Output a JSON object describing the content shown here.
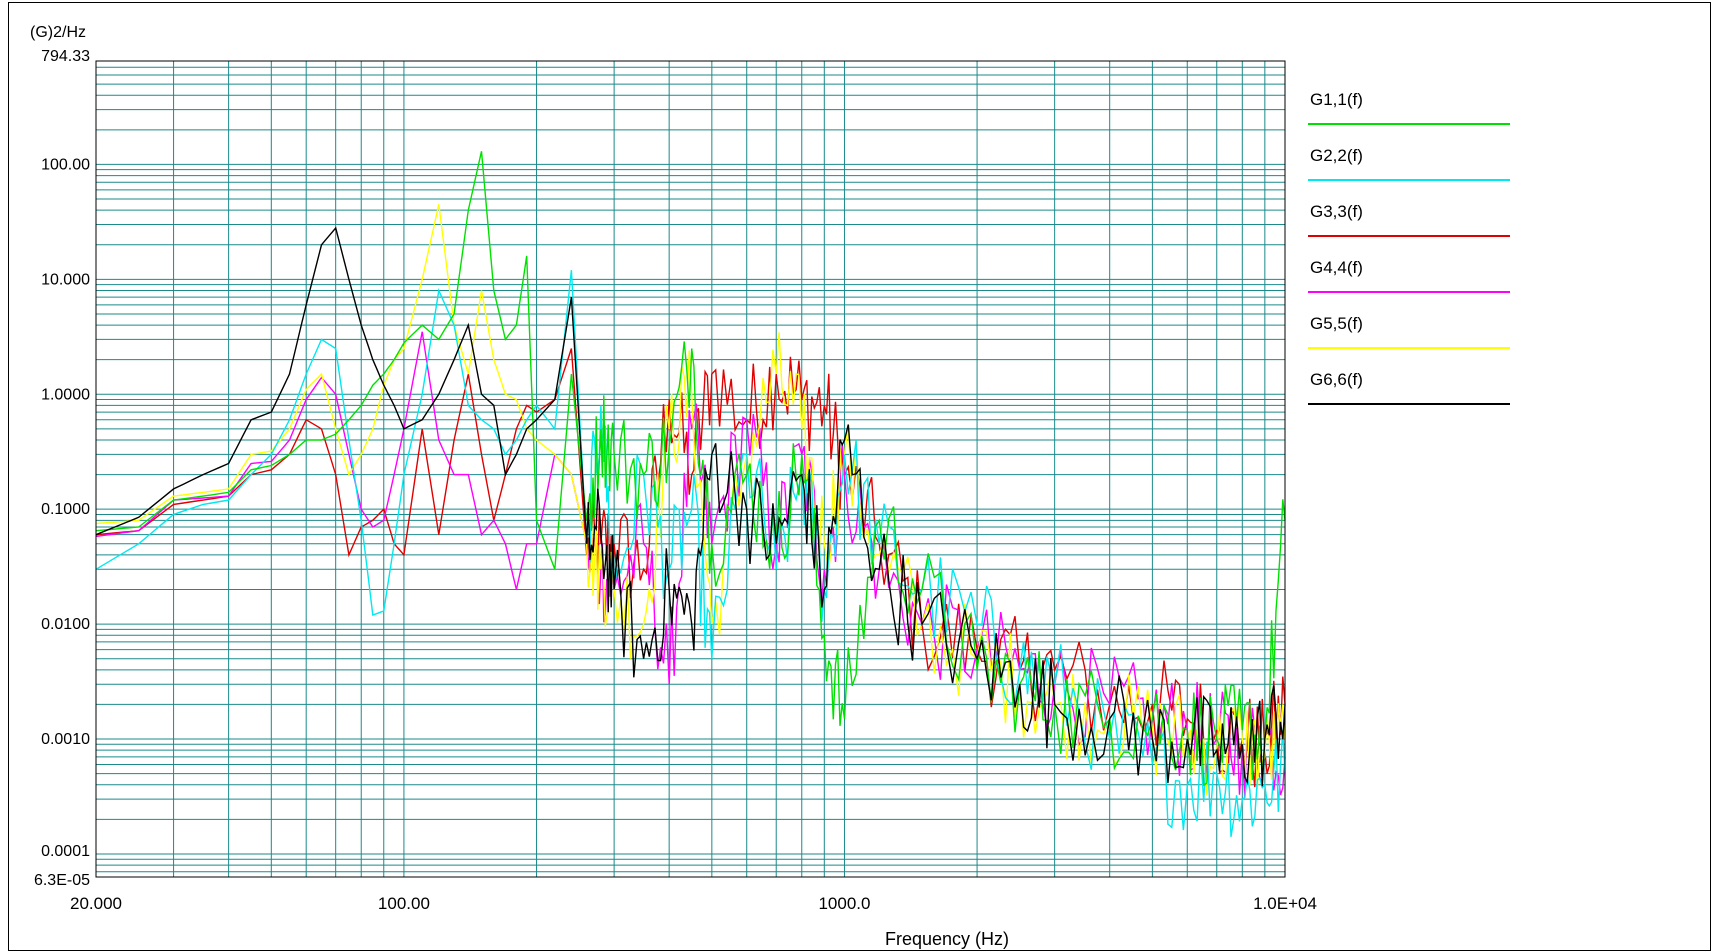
{
  "chart_data": {
    "type": "line",
    "ylabel": "(G)2/Hz",
    "xlabel": "Frequency (Hz)",
    "xscale": "log",
    "yscale": "log",
    "xlim": [
      20,
      10000
    ],
    "ylim": [
      6.3e-05,
      794.33
    ],
    "grid": true,
    "legend_position": "right",
    "y_tick_labels": [
      {
        "value": 794.33,
        "label": "794.33"
      },
      {
        "value": 100,
        "label": "100.00"
      },
      {
        "value": 10,
        "label": "10.000"
      },
      {
        "value": 1,
        "label": "1.0000"
      },
      {
        "value": 0.1,
        "label": "0.1000"
      },
      {
        "value": 0.01,
        "label": "0.0100"
      },
      {
        "value": 0.001,
        "label": "0.0010"
      },
      {
        "value": 0.0001,
        "label": "0.0001"
      },
      {
        "value": 6.3e-05,
        "label": "6.3E-05"
      }
    ],
    "x_tick_labels": [
      {
        "value": 20,
        "label": "20.000"
      },
      {
        "value": 100,
        "label": "100.00"
      },
      {
        "value": 1000,
        "label": "1000.0"
      },
      {
        "value": 10000,
        "label": "1.0E+04"
      }
    ],
    "series": [
      {
        "name": "G1,1(f)",
        "color": "#00e000",
        "x": [
          20,
          25,
          30,
          35,
          40,
          45,
          50,
          55,
          60,
          65,
          70,
          75,
          80,
          85,
          90,
          95,
          100,
          110,
          120,
          130,
          140,
          150,
          160,
          170,
          180,
          190,
          200,
          220,
          240,
          260,
          280,
          300,
          350,
          400,
          450,
          500,
          600,
          700,
          800,
          900,
          1000,
          1200,
          1500,
          2000,
          2500,
          3000,
          4000,
          5000,
          6000,
          7000,
          8000,
          9000,
          10000
        ],
        "y": [
          0.065,
          0.07,
          0.12,
          0.13,
          0.14,
          0.22,
          0.24,
          0.3,
          0.4,
          0.4,
          0.45,
          0.6,
          0.8,
          1.2,
          1.5,
          2.0,
          2.8,
          4.0,
          3.0,
          5.0,
          40,
          130,
          8,
          3,
          4.0,
          16,
          0.08,
          0.03,
          1.5,
          0.08,
          0.5,
          0.3,
          0.2,
          0.35,
          2.5,
          0.05,
          0.2,
          0.05,
          0.3,
          0.008,
          0.0015,
          0.08,
          0.02,
          0.004,
          0.003,
          0.002,
          0.0015,
          0.0015,
          0.0012,
          0.001,
          0.0012,
          0.001,
          0.08
        ]
      },
      {
        "name": "G2,2(f)",
        "color": "#00e8f0",
        "x": [
          20,
          25,
          30,
          35,
          40,
          45,
          50,
          55,
          60,
          65,
          70,
          75,
          80,
          85,
          90,
          95,
          100,
          110,
          120,
          130,
          140,
          150,
          160,
          170,
          180,
          190,
          200,
          220,
          240,
          260,
          280,
          300,
          350,
          400,
          450,
          500,
          600,
          700,
          800,
          900,
          1000,
          1200,
          1500,
          2000,
          2500,
          3000,
          4000,
          5000,
          6000,
          7000,
          8000,
          9000,
          10000
        ],
        "y": [
          0.03,
          0.05,
          0.09,
          0.11,
          0.12,
          0.2,
          0.3,
          0.6,
          1.5,
          3.0,
          2.5,
          0.4,
          0.08,
          0.012,
          0.013,
          0.05,
          0.2,
          1.0,
          8.0,
          4.0,
          0.8,
          0.6,
          0.5,
          0.3,
          0.4,
          0.6,
          0.8,
          0.5,
          12,
          0.05,
          0.8,
          0.02,
          0.2,
          0.03,
          0.1,
          0.005,
          0.3,
          0.03,
          0.2,
          0.02,
          0.3,
          0.05,
          0.02,
          0.01,
          0.004,
          0.003,
          0.001,
          0.0006,
          0.0004,
          0.0005,
          0.0003,
          0.0004,
          0.0005
        ]
      },
      {
        "name": "G3,3(f)",
        "color": "#e00000",
        "x": [
          20,
          25,
          30,
          35,
          40,
          45,
          50,
          55,
          60,
          65,
          70,
          75,
          80,
          85,
          90,
          95,
          100,
          110,
          120,
          130,
          140,
          150,
          160,
          170,
          180,
          190,
          200,
          220,
          240,
          260,
          280,
          300,
          350,
          400,
          450,
          500,
          600,
          700,
          800,
          900,
          1000,
          1200,
          1500,
          2000,
          2500,
          3000,
          4000,
          5000,
          6000,
          7000,
          8000,
          9000,
          10000
        ],
        "y": [
          0.06,
          0.065,
          0.11,
          0.12,
          0.13,
          0.2,
          0.22,
          0.3,
          0.6,
          0.5,
          0.2,
          0.04,
          0.07,
          0.08,
          0.1,
          0.05,
          0.04,
          0.5,
          0.06,
          0.4,
          1.5,
          0.3,
          0.08,
          0.2,
          0.5,
          0.8,
          0.7,
          0.9,
          2.5,
          0.04,
          0.05,
          0.05,
          0.03,
          0.9,
          0.2,
          1.5,
          0.6,
          1.5,
          0.9,
          0.8,
          0.2,
          0.05,
          0.01,
          0.006,
          0.004,
          0.004,
          0.002,
          0.002,
          0.0015,
          0.0012,
          0.001,
          0.0008,
          0.002
        ]
      },
      {
        "name": "G4,4(f)",
        "color": "#ff00ff",
        "x": [
          20,
          25,
          30,
          35,
          40,
          45,
          50,
          55,
          60,
          65,
          70,
          75,
          80,
          85,
          90,
          95,
          100,
          110,
          120,
          130,
          140,
          150,
          160,
          170,
          180,
          190,
          200,
          220,
          240,
          260,
          280,
          300,
          350,
          400,
          450,
          500,
          600,
          700,
          800,
          900,
          1000,
          1200,
          1500,
          2000,
          2500,
          3000,
          4000,
          5000,
          6000,
          7000,
          8000,
          9000,
          10000
        ],
        "y": [
          0.058,
          0.065,
          0.12,
          0.125,
          0.13,
          0.25,
          0.26,
          0.4,
          0.9,
          1.4,
          1.0,
          0.3,
          0.1,
          0.07,
          0.08,
          0.2,
          0.5,
          3.5,
          0.4,
          0.2,
          0.2,
          0.06,
          0.08,
          0.05,
          0.02,
          0.05,
          0.05,
          0.3,
          0.2,
          0.05,
          0.03,
          0.02,
          0.05,
          0.003,
          0.5,
          0.05,
          0.6,
          0.05,
          0.3,
          0.03,
          0.2,
          0.03,
          0.01,
          0.006,
          0.004,
          0.003,
          0.002,
          0.0015,
          0.0012,
          0.001,
          0.0008,
          0.001,
          0.0007
        ]
      },
      {
        "name": "G5,5(f)",
        "color": "#ffff00",
        "x": [
          20,
          25,
          30,
          35,
          40,
          45,
          50,
          55,
          60,
          65,
          70,
          75,
          80,
          85,
          90,
          95,
          100,
          110,
          120,
          130,
          140,
          150,
          160,
          170,
          180,
          190,
          200,
          220,
          240,
          260,
          280,
          300,
          350,
          400,
          450,
          500,
          600,
          700,
          800,
          900,
          1000,
          1200,
          1500,
          2000,
          2500,
          3000,
          4000,
          5000,
          6000,
          7000,
          8000,
          9000,
          10000
        ],
        "y": [
          0.075,
          0.08,
          0.13,
          0.14,
          0.15,
          0.3,
          0.32,
          0.5,
          1.1,
          1.5,
          0.5,
          0.2,
          0.3,
          0.5,
          1.2,
          2.0,
          2.5,
          10,
          45,
          4.0,
          1.5,
          8.0,
          2.0,
          1.0,
          0.9,
          0.5,
          0.4,
          0.3,
          0.2,
          0.05,
          0.03,
          0.02,
          0.01,
          0.5,
          1.0,
          0.01,
          0.3,
          1.5,
          0.5,
          0.05,
          0.3,
          0.04,
          0.01,
          0.005,
          0.003,
          0.002,
          0.0015,
          0.0012,
          0.001,
          0.0008,
          0.001,
          0.0007,
          0.001
        ]
      },
      {
        "name": "G6,6(f)",
        "color": "#000000",
        "x": [
          20,
          25,
          30,
          35,
          40,
          45,
          50,
          55,
          60,
          65,
          70,
          75,
          80,
          85,
          90,
          95,
          100,
          110,
          120,
          130,
          140,
          150,
          160,
          170,
          180,
          190,
          200,
          220,
          240,
          260,
          280,
          300,
          350,
          400,
          450,
          500,
          600,
          700,
          800,
          900,
          1000,
          1200,
          1500,
          2000,
          2500,
          3000,
          4000,
          5000,
          6000,
          7000,
          8000,
          9000,
          10000
        ],
        "y": [
          0.06,
          0.085,
          0.15,
          0.2,
          0.25,
          0.6,
          0.7,
          1.5,
          6.0,
          20,
          28,
          10,
          4.0,
          2.0,
          1.2,
          0.8,
          0.5,
          0.6,
          1.0,
          2.0,
          4.0,
          1.0,
          0.8,
          0.2,
          0.3,
          0.5,
          0.6,
          0.9,
          7.0,
          0.05,
          0.06,
          0.02,
          0.005,
          0.02,
          0.01,
          0.3,
          0.1,
          0.05,
          0.2,
          0.02,
          0.4,
          0.03,
          0.01,
          0.005,
          0.003,
          0.002,
          0.0015,
          0.001,
          0.001,
          0.0008,
          0.0009,
          0.001,
          0.002
        ]
      }
    ]
  }
}
